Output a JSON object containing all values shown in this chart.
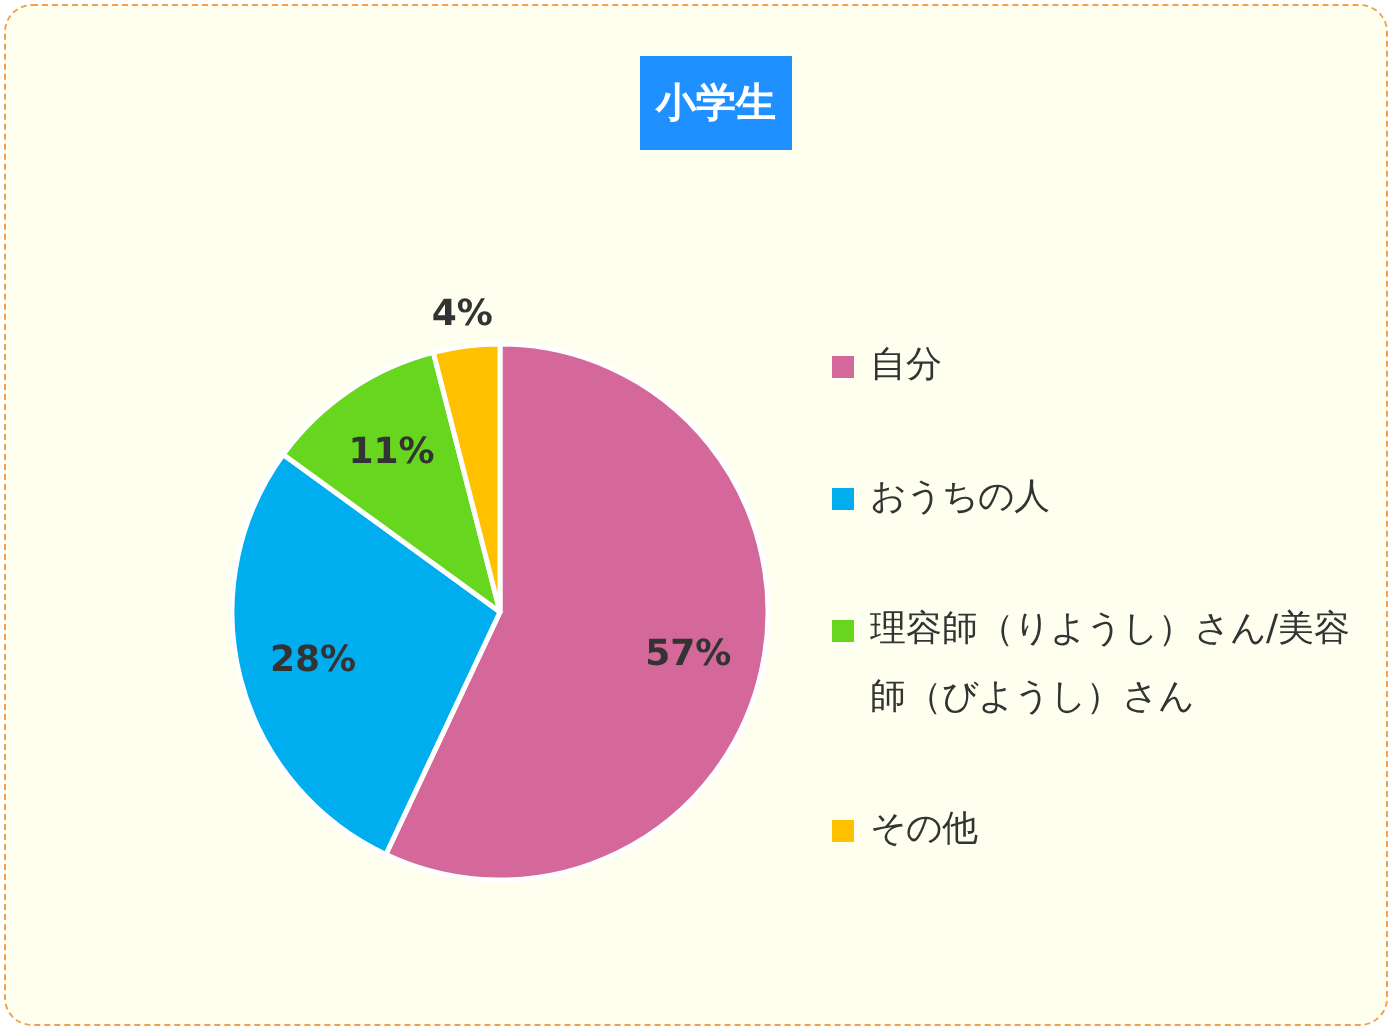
{
  "chart_data": {
    "type": "pie",
    "title": "小学生",
    "categories": [
      "自分",
      "おうちの人",
      "理容師（りようし）さん/美容師（びようし）さん",
      "その他"
    ],
    "values": [
      57,
      28,
      11,
      4
    ],
    "colors": [
      "#d4689a",
      "#00aeef",
      "#66d61f",
      "#ffc000"
    ],
    "value_labels": [
      "57%",
      "28%",
      "11%",
      "4%"
    ],
    "legend": "right"
  }
}
